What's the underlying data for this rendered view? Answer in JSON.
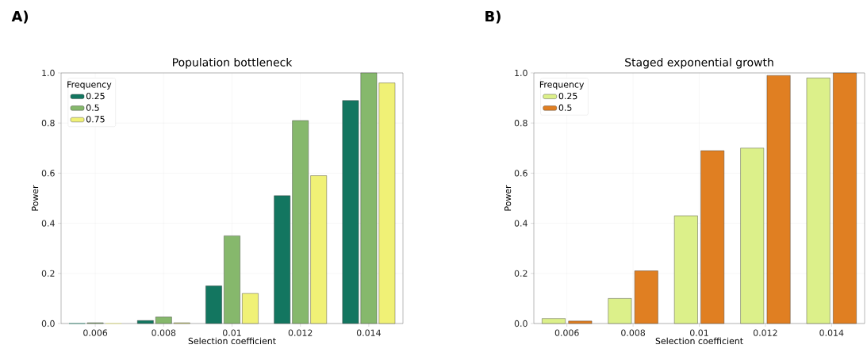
{
  "chart_data": [
    {
      "type": "bar",
      "title": "Population bottleneck",
      "xlabel": "Selection coefficient",
      "ylabel": "Power",
      "legend_title": "Frequency",
      "annotations": [
        "A)"
      ],
      "categories": [
        "0.006",
        "0.008",
        "0.01",
        "0.012",
        "0.014"
      ],
      "series": [
        {
          "name": "0.25",
          "color": "#137660",
          "values": [
            0,
            0.012,
            0.15,
            0.51,
            0.89
          ]
        },
        {
          "name": "0.5",
          "color": "#86b86c",
          "values": [
            0.003,
            0.026,
            0.35,
            0.81,
            1.0
          ]
        },
        {
          "name": "0.75",
          "color": "#f0f176",
          "values": [
            0,
            0.003,
            0.12,
            0.59,
            0.96
          ]
        }
      ],
      "ylim": [
        0,
        1
      ],
      "yticks": [
        {
          "value": 0,
          "label": "0.0"
        },
        {
          "value": 0.2,
          "label": "0.2"
        },
        {
          "value": 0.4,
          "label": "0.4"
        },
        {
          "value": 0.6,
          "label": "0.6"
        },
        {
          "value": 0.8,
          "label": "0.8"
        },
        {
          "value": 1,
          "label": "1.0"
        }
      ],
      "grid": true,
      "legend": "top left"
    },
    {
      "type": "bar",
      "title": "Staged exponential growth",
      "xlabel": "Selection coefficient",
      "ylabel": "Power",
      "legend_title": "Frequency",
      "annotations": [
        "B)"
      ],
      "categories": [
        "0.006",
        "0.008",
        "0.01",
        "0.012",
        "0.014"
      ],
      "series": [
        {
          "name": "0.25",
          "color": "#dcf08a",
          "values": [
            0.02,
            0.1,
            0.43,
            0.7,
            0.98
          ]
        },
        {
          "name": "0.5",
          "color": "#e07f22",
          "values": [
            0.01,
            0.21,
            0.69,
            0.99,
            1.0
          ]
        }
      ],
      "ylim": [
        0,
        1
      ],
      "yticks": [
        {
          "value": 0,
          "label": "0.0"
        },
        {
          "value": 0.2,
          "label": "0.2"
        },
        {
          "value": 0.4,
          "label": "0.4"
        },
        {
          "value": 0.6,
          "label": "0.6"
        },
        {
          "value": 0.8,
          "label": "0.8"
        },
        {
          "value": 1,
          "label": "1.0"
        }
      ],
      "grid": true,
      "legend": "top left"
    }
  ]
}
